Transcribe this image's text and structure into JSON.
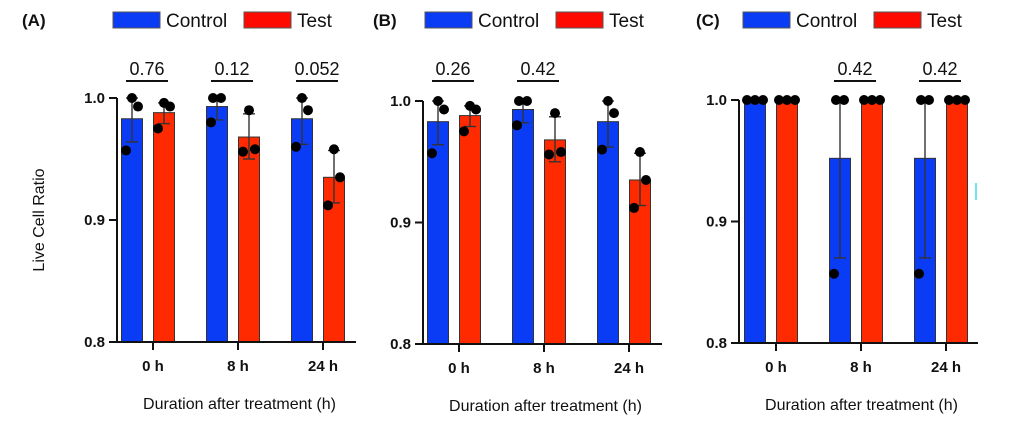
{
  "chart_data": [
    {
      "type": "bar",
      "panel": "(A)",
      "categories": [
        "0 h",
        "8 h",
        "24 h"
      ],
      "xlabel": "Duration after treatment (h)",
      "ylabel": "Live Cell Ratio",
      "ylim": [
        0.8,
        1.0
      ],
      "yticks": [
        "0.8",
        "0.9",
        "1.0"
      ],
      "legend": [
        "Control",
        "Test"
      ],
      "legend_position": "top",
      "p_values": [
        "0.76",
        "0.12",
        "0.052"
      ],
      "series": [
        {
          "name": "Control",
          "color": "#0a3cf5",
          "values": [
            0.983,
            0.993,
            0.983
          ],
          "err": [
            [
              0.964,
              1.0
            ],
            [
              0.982,
              1.0
            ],
            [
              0.962,
              1.0
            ]
          ],
          "points": [
            [
              1.0,
              0.993,
              0.957
            ],
            [
              1.0,
              1.0,
              0.98
            ],
            [
              1.0,
              0.99,
              0.96
            ]
          ]
        },
        {
          "name": "Test",
          "color": "#ff2a00",
          "values": [
            0.988,
            0.968,
            0.935
          ],
          "err": [
            [
              0.979,
              0.996
            ],
            [
              0.95,
              0.987
            ],
            [
              0.914,
              0.957
            ]
          ],
          "points": [
            [
              0.996,
              0.993,
              0.975
            ],
            [
              0.99,
              0.958,
              0.956
            ],
            [
              0.958,
              0.935,
              0.912
            ]
          ]
        }
      ]
    },
    {
      "type": "bar",
      "panel": "(B)",
      "categories": [
        "0 h",
        "8 h",
        "24 h"
      ],
      "xlabel": "Duration after treatment (h)",
      "ylabel": "",
      "ylim": [
        0.8,
        1.0
      ],
      "yticks": [
        "0.8",
        "0.9",
        "1.0"
      ],
      "legend": [
        "Control",
        "Test"
      ],
      "legend_position": "top",
      "p_values": [
        "0.26",
        "0.42",
        ""
      ],
      "series": [
        {
          "name": "Control",
          "color": "#0a3cf5",
          "values": [
            0.983,
            0.993,
            0.983
          ],
          "err": [
            [
              0.964,
              1.0
            ],
            [
              0.982,
              1.0
            ],
            [
              0.962,
              1.0
            ]
          ],
          "points": [
            [
              1.0,
              0.993,
              0.957
            ],
            [
              1.0,
              1.0,
              0.98
            ],
            [
              1.0,
              0.99,
              0.96
            ]
          ]
        },
        {
          "name": "Test",
          "color": "#ff2a00",
          "values": [
            0.988,
            0.968,
            0.935
          ],
          "err": [
            [
              0.979,
              0.996
            ],
            [
              0.95,
              0.987
            ],
            [
              0.914,
              0.957
            ]
          ],
          "points": [
            [
              0.996,
              0.993,
              0.975
            ],
            [
              0.99,
              0.958,
              0.956
            ],
            [
              0.958,
              0.935,
              0.912
            ]
          ]
        }
      ]
    },
    {
      "type": "bar",
      "panel": "(C)",
      "categories": [
        "0 h",
        "8 h",
        "24 h"
      ],
      "xlabel": "Duration after treatment (h)",
      "ylabel": "",
      "ylim": [
        0.8,
        1.0
      ],
      "yticks": [
        "0.8",
        "0.9",
        "1.0"
      ],
      "legend": [
        "Control",
        "Test"
      ],
      "legend_position": "top",
      "p_values": [
        "",
        "0.42",
        "0.42"
      ],
      "series": [
        {
          "name": "Control",
          "color": "#0a3cf5",
          "values": [
            1.0,
            0.952,
            0.952
          ],
          "err": [
            [
              1.0,
              1.0
            ],
            [
              0.87,
              1.0
            ],
            [
              0.87,
              1.0
            ]
          ],
          "points": [
            [
              1.0,
              1.0,
              1.0
            ],
            [
              1.0,
              1.0,
              0.857
            ],
            [
              1.0,
              1.0,
              0.857
            ]
          ]
        },
        {
          "name": "Test",
          "color": "#ff2a00",
          "values": [
            1.0,
            1.0,
            1.0
          ],
          "err": [
            [
              1.0,
              1.0
            ],
            [
              1.0,
              1.0
            ],
            [
              1.0,
              1.0
            ]
          ],
          "points": [
            [
              1.0,
              1.0,
              1.0
            ],
            [
              1.0,
              1.0,
              1.0
            ],
            [
              1.0,
              1.0,
              1.0
            ]
          ]
        }
      ]
    }
  ],
  "legend_swatch_colors": {
    "Control": "#0a3cf5",
    "Test": "#ff0a00"
  }
}
